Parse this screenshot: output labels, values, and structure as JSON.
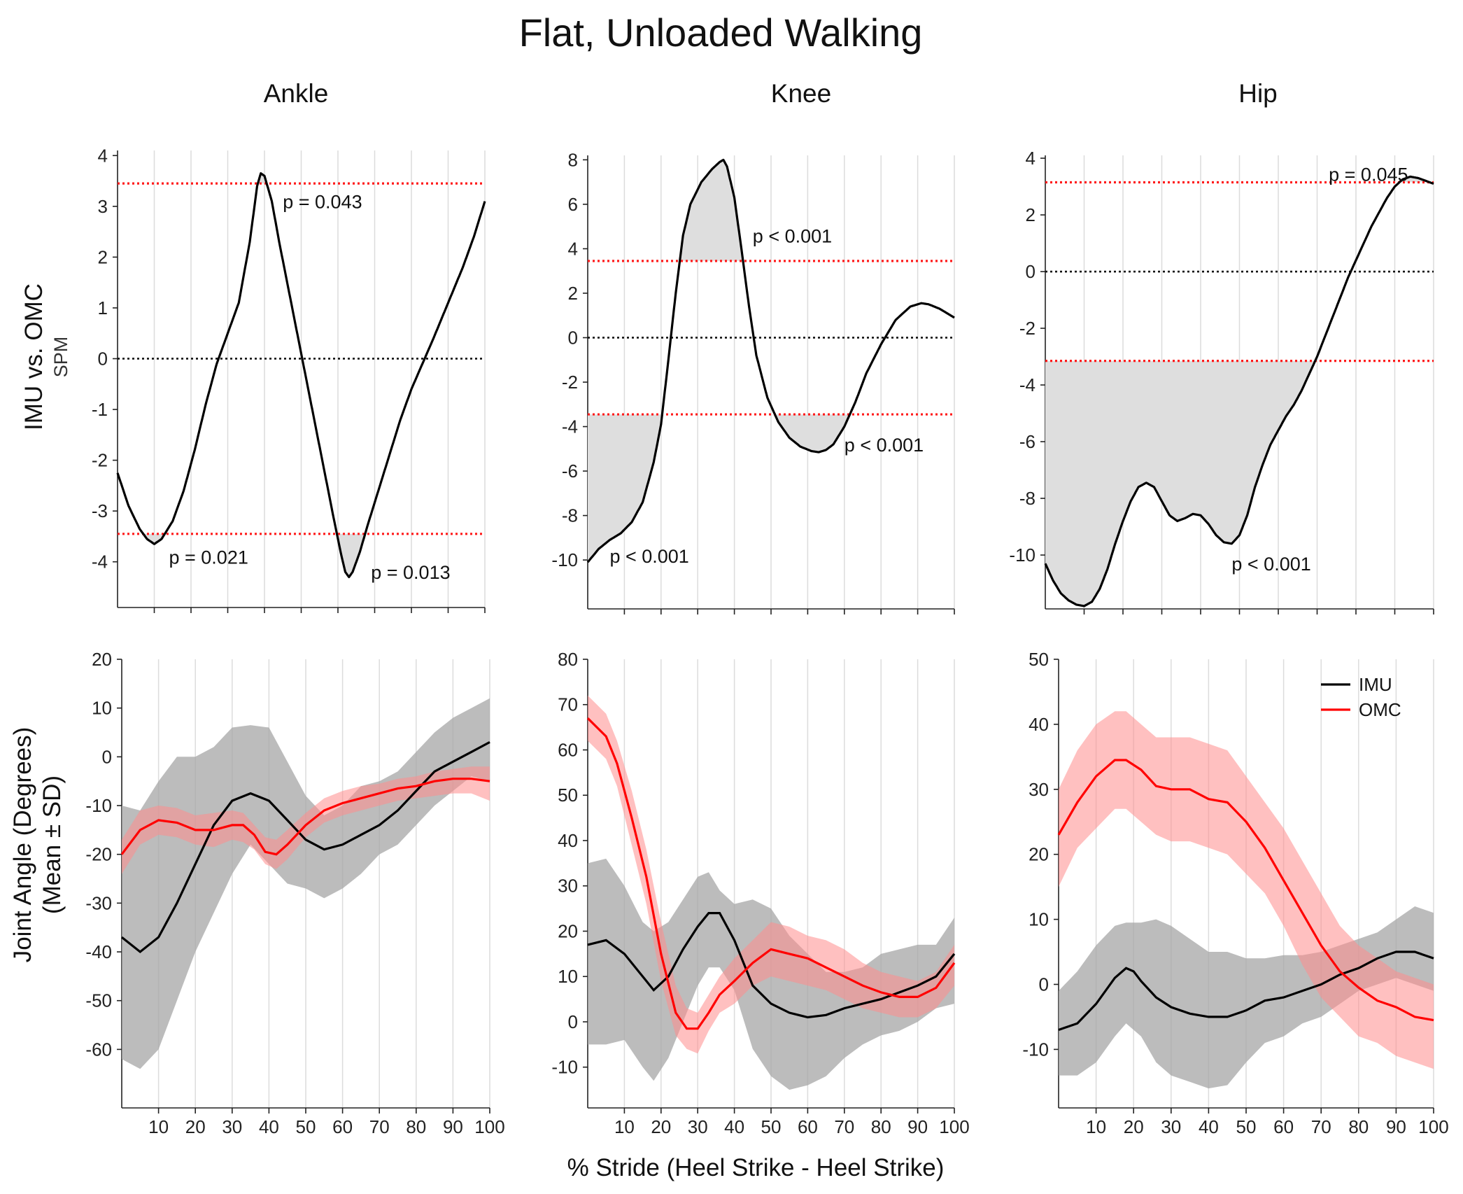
{
  "figure": {
    "title": "Flat, Unloaded Walking",
    "spm_ylabel_main": "IMU vs. OMC",
    "spm_ylabel_sub": "SPM",
    "angle_ylabel_line1": "Joint Angle (Degrees)",
    "angle_ylabel_line2": "(Mean ± SD)",
    "xlabel": "% Stride (Heel Strike - Heel Strike)",
    "colors": {
      "imu": "#000000",
      "omc": "#ff0000",
      "imu_band": "#a6a6a6",
      "omc_band": "#ff8c8c",
      "threshold": "#ff1a1a",
      "significance_fill": "#dedede"
    }
  },
  "legend": {
    "items": [
      {
        "label": "IMU",
        "color": "#000000"
      },
      {
        "label": "OMC",
        "color": "#ff0000"
      }
    ]
  },
  "chart_data": [
    {
      "panel": "ankle-spm",
      "column_title": "Ankle",
      "type": "line",
      "xlim": [
        0,
        100
      ],
      "ylim": [
        -4.9,
        4.1
      ],
      "yticks": [
        4,
        3,
        2,
        1,
        0,
        -1,
        -2,
        -3,
        -4
      ],
      "ytick_labels": [
        "4",
        "3",
        "2",
        "1",
        "0",
        "-1",
        "-2",
        "-3",
        "-4"
      ],
      "threshold": 3.45,
      "x": [
        0,
        3,
        6,
        8,
        10,
        12,
        15,
        18,
        21,
        24,
        27,
        30,
        33,
        36,
        38,
        39,
        40,
        42,
        44,
        47,
        50,
        53,
        56,
        59,
        61,
        62,
        63,
        64,
        66,
        68,
        71,
        74,
        77,
        80,
        83,
        86,
        90,
        94,
        97,
        100
      ],
      "y": [
        -2.25,
        -2.9,
        -3.35,
        -3.55,
        -3.65,
        -3.55,
        -3.2,
        -2.6,
        -1.8,
        -0.9,
        -0.1,
        0.5,
        1.1,
        2.3,
        3.4,
        3.65,
        3.6,
        3.1,
        2.3,
        1.2,
        0.1,
        -1.0,
        -2.1,
        -3.2,
        -3.9,
        -4.2,
        -4.3,
        -4.2,
        -3.8,
        -3.3,
        -2.6,
        -1.9,
        -1.2,
        -0.6,
        -0.1,
        0.4,
        1.1,
        1.8,
        2.4,
        3.1
      ],
      "annotations": [
        {
          "text": "p = 0.043",
          "x": 45,
          "y": 3.1
        },
        {
          "text": "p = 0.021",
          "x": 14,
          "y": -3.9
        },
        {
          "text": "p = 0.013",
          "x": 69,
          "y": -4.2
        }
      ]
    },
    {
      "panel": "knee-spm",
      "column_title": "Knee",
      "type": "line",
      "xlim": [
        0,
        100
      ],
      "ylim": [
        -12.2,
        8.2
      ],
      "yticks": [
        8,
        6,
        4,
        2,
        0,
        -2,
        -4,
        -6,
        -8,
        -10
      ],
      "ytick_labels": [
        "8",
        "6",
        "4",
        "2",
        "0",
        "-2",
        "-4",
        "-6",
        "-8",
        "-10"
      ],
      "threshold": 3.45,
      "x": [
        0,
        3,
        6,
        9,
        12,
        15,
        18,
        20,
        22,
        24,
        26,
        28,
        31,
        34,
        36,
        37,
        38,
        40,
        42,
        44,
        46,
        49,
        52,
        55,
        58,
        61,
        63,
        65,
        67,
        70,
        73,
        76,
        80,
        84,
        88,
        91,
        93,
        96,
        100
      ],
      "y": [
        -10.1,
        -9.5,
        -9.1,
        -8.8,
        -8.3,
        -7.4,
        -5.6,
        -3.9,
        -1.0,
        2.0,
        4.6,
        6.0,
        7.0,
        7.6,
        7.9,
        8.0,
        7.7,
        6.3,
        3.9,
        1.4,
        -0.8,
        -2.7,
        -3.8,
        -4.5,
        -4.9,
        -5.1,
        -5.15,
        -5.05,
        -4.8,
        -4.0,
        -2.9,
        -1.6,
        -0.3,
        0.8,
        1.4,
        1.55,
        1.5,
        1.3,
        0.9
      ],
      "annotations": [
        {
          "text": "p < 0.001",
          "x": 45,
          "y": 4.6
        },
        {
          "text": "p < 0.001",
          "x": 70,
          "y": -4.8
        },
        {
          "text": "p < 0.001",
          "x": 6,
          "y": -9.8
        }
      ]
    },
    {
      "panel": "hip-spm",
      "column_title": "Hip",
      "type": "line",
      "xlim": [
        0,
        100
      ],
      "ylim": [
        -11.9,
        4.1
      ],
      "yticks": [
        4,
        2,
        0,
        -2,
        -4,
        -6,
        -8,
        -10
      ],
      "ytick_labels": [
        "4",
        "2",
        "0",
        "-2",
        "-4",
        "-6",
        "-8",
        "-10"
      ],
      "threshold": 3.15,
      "x": [
        0,
        2,
        4,
        6,
        8,
        10,
        12,
        14,
        16,
        18,
        20,
        22,
        24,
        26,
        28,
        30,
        32,
        34,
        36,
        38,
        40,
        42,
        44,
        46,
        48,
        50,
        52,
        54,
        56,
        58,
        60,
        62,
        64,
        66,
        68,
        70,
        72,
        74,
        76,
        78,
        80,
        82,
        84,
        86,
        88,
        90,
        92,
        94,
        96,
        98,
        100
      ],
      "y": [
        -10.3,
        -10.9,
        -11.35,
        -11.6,
        -11.75,
        -11.8,
        -11.65,
        -11.2,
        -10.5,
        -9.6,
        -8.8,
        -8.1,
        -7.6,
        -7.45,
        -7.6,
        -8.1,
        -8.6,
        -8.8,
        -8.7,
        -8.55,
        -8.6,
        -8.9,
        -9.3,
        -9.55,
        -9.6,
        -9.3,
        -8.6,
        -7.6,
        -6.8,
        -6.1,
        -5.6,
        -5.1,
        -4.7,
        -4.2,
        -3.6,
        -3.0,
        -2.3,
        -1.6,
        -0.9,
        -0.2,
        0.4,
        1.0,
        1.6,
        2.1,
        2.6,
        3.0,
        3.25,
        3.35,
        3.3,
        3.2,
        3.1
      ],
      "annotations": [
        {
          "text": "p = 0.045",
          "x": 73,
          "y": 3.45
        },
        {
          "text": "p < 0.001",
          "x": 48,
          "y": -10.3
        }
      ]
    },
    {
      "panel": "ankle-angle",
      "type": "line",
      "xlim": [
        0,
        100
      ],
      "ylim": [
        -72,
        20
      ],
      "yticks": [
        20,
        10,
        0,
        -10,
        -20,
        -30,
        -40,
        -50,
        -60
      ],
      "ytick_labels": [
        "20",
        "10",
        "0",
        "-10",
        "-20",
        "-30",
        "-40",
        "-50",
        "-60"
      ],
      "xticks": [
        10,
        20,
        30,
        40,
        50,
        60,
        70,
        80,
        90,
        100
      ],
      "xtick_labels": [
        "10",
        "20",
        "30",
        "40",
        "50",
        "60",
        "70",
        "80",
        "90",
        "100"
      ],
      "series": [
        {
          "name": "IMU",
          "x": [
            0,
            5,
            10,
            15,
            20,
            25,
            30,
            35,
            40,
            45,
            50,
            55,
            60,
            65,
            70,
            75,
            80,
            85,
            90,
            95,
            100
          ],
          "mean": [
            -37,
            -40,
            -37,
            -30,
            -22,
            -14,
            -9,
            -7.5,
            -9,
            -13,
            -17,
            -19,
            -18,
            -16,
            -14,
            -11,
            -7,
            -3,
            -1,
            1,
            3
          ],
          "upper": [
            -10,
            -11,
            -5,
            0,
            0,
            2,
            6,
            6.5,
            6,
            -1,
            -8,
            -12,
            -10,
            -6,
            -5,
            -3,
            1,
            5,
            8,
            10,
            12
          ],
          "lower": [
            -62,
            -64,
            -60,
            -50,
            -40,
            -32,
            -24,
            -18,
            -22,
            -26,
            -27,
            -29,
            -27,
            -24,
            -20,
            -18,
            -14,
            -10,
            -7,
            -4,
            -5
          ]
        },
        {
          "name": "OMC",
          "x": [
            0,
            5,
            10,
            15,
            20,
            25,
            30,
            33,
            36,
            39,
            42,
            45,
            50,
            55,
            60,
            65,
            70,
            75,
            80,
            85,
            90,
            95,
            100
          ],
          "mean": [
            -20,
            -15,
            -13,
            -13.5,
            -15,
            -15,
            -14,
            -14,
            -16,
            -19.5,
            -20,
            -18,
            -14,
            -11,
            -9.5,
            -8.5,
            -7.5,
            -6.5,
            -6,
            -5,
            -4.5,
            -4.5,
            -5
          ],
          "upper": [
            -17,
            -11,
            -10,
            -10.5,
            -12,
            -11.5,
            -11,
            -11.5,
            -14,
            -16.5,
            -17,
            -15,
            -11.5,
            -8.5,
            -7,
            -6,
            -5.5,
            -4.5,
            -4,
            -3,
            -2.5,
            -2,
            -2
          ],
          "lower": [
            -24,
            -18,
            -16,
            -16.5,
            -18,
            -18.5,
            -17,
            -17.5,
            -19,
            -22,
            -23,
            -21,
            -16.5,
            -13.5,
            -12,
            -11,
            -10,
            -9,
            -8.5,
            -8,
            -7.5,
            -7.5,
            -9
          ]
        }
      ]
    },
    {
      "panel": "knee-angle",
      "type": "line",
      "xlim": [
        0,
        100
      ],
      "ylim": [
        -19,
        80
      ],
      "yticks": [
        80,
        70,
        60,
        50,
        40,
        30,
        20,
        10,
        0,
        -10
      ],
      "ytick_labels": [
        "80",
        "70",
        "60",
        "50",
        "40",
        "30",
        "20",
        "10",
        "0",
        "-10"
      ],
      "xticks": [
        10,
        20,
        30,
        40,
        50,
        60,
        70,
        80,
        90,
        100
      ],
      "xtick_labels": [
        "10",
        "20",
        "30",
        "40",
        "50",
        "60",
        "70",
        "80",
        "90",
        "100"
      ],
      "series": [
        {
          "name": "IMU",
          "x": [
            0,
            5,
            10,
            15,
            18,
            22,
            26,
            30,
            33,
            36,
            40,
            45,
            50,
            55,
            60,
            65,
            70,
            75,
            80,
            85,
            90,
            95,
            100
          ],
          "mean": [
            17,
            18,
            15,
            10,
            7,
            10,
            16,
            21,
            24,
            24,
            18,
            8,
            4,
            2,
            1,
            1.5,
            3,
            4,
            5,
            6.5,
            8,
            10,
            15
          ],
          "upper": [
            35,
            36,
            30,
            22,
            20,
            22,
            27,
            32,
            33,
            29,
            26,
            27,
            25,
            19,
            15,
            11,
            11,
            12,
            15,
            16,
            17,
            17,
            23
          ],
          "lower": [
            -5,
            -5,
            -4,
            -10,
            -13,
            -8,
            0,
            8,
            12,
            12,
            7,
            -6,
            -12,
            -15,
            -14,
            -12,
            -8,
            -5,
            -3,
            -2,
            0,
            3,
            4
          ]
        },
        {
          "name": "OMC",
          "x": [
            0,
            5,
            8,
            12,
            16,
            20,
            24,
            27,
            30,
            33,
            36,
            40,
            45,
            50,
            55,
            60,
            65,
            70,
            75,
            80,
            85,
            90,
            95,
            100
          ],
          "mean": [
            67,
            63,
            57,
            45,
            32,
            15,
            2,
            -1.5,
            -1.5,
            2,
            6,
            9,
            13,
            16,
            15,
            14,
            12,
            10,
            8,
            6.5,
            5.5,
            5.5,
            7.5,
            13
          ],
          "upper": [
            72,
            68,
            62,
            51,
            38,
            22,
            8,
            3,
            2,
            6,
            10,
            14,
            18,
            22,
            21,
            19,
            18,
            16,
            13,
            11,
            10,
            9,
            11,
            17
          ],
          "lower": [
            62,
            58,
            52,
            39,
            26,
            9,
            -3,
            -6,
            -7,
            -2,
            2,
            4,
            8,
            10,
            9,
            8,
            7,
            5,
            3,
            2,
            1,
            1,
            3,
            8
          ]
        }
      ]
    },
    {
      "panel": "hip-angle",
      "type": "line",
      "xlim": [
        0,
        100
      ],
      "ylim": [
        -19,
        50
      ],
      "yticks": [
        50,
        40,
        30,
        20,
        10,
        0,
        -10
      ],
      "ytick_labels": [
        "50",
        "40",
        "30",
        "20",
        "10",
        "0",
        "-10"
      ],
      "xticks": [
        10,
        20,
        30,
        40,
        50,
        60,
        70,
        80,
        90,
        100
      ],
      "xtick_labels": [
        "10",
        "20",
        "30",
        "40",
        "50",
        "60",
        "70",
        "80",
        "90",
        "100"
      ],
      "series": [
        {
          "name": "IMU",
          "x": [
            0,
            5,
            10,
            15,
            18,
            20,
            22,
            26,
            30,
            35,
            40,
            45,
            50,
            55,
            60,
            65,
            70,
            75,
            80,
            85,
            90,
            95,
            100
          ],
          "mean": [
            -7,
            -6,
            -3,
            1,
            2.5,
            2,
            0.5,
            -2,
            -3.5,
            -4.5,
            -5,
            -5,
            -4,
            -2.5,
            -2,
            -1,
            0,
            1.5,
            2.5,
            4,
            5,
            5,
            4
          ],
          "upper": [
            -1,
            2,
            6,
            9,
            9.5,
            9.5,
            9.5,
            10,
            9,
            7,
            5,
            5,
            4,
            4,
            4.5,
            4.5,
            5,
            6,
            7,
            8,
            10,
            12,
            11
          ],
          "lower": [
            -14,
            -14,
            -12,
            -8,
            -6,
            -7,
            -8,
            -12,
            -14,
            -15,
            -16,
            -15.5,
            -12,
            -9,
            -8,
            -6,
            -5,
            -3,
            -1,
            0,
            1,
            0,
            -1
          ]
        },
        {
          "name": "OMC",
          "x": [
            0,
            5,
            10,
            15,
            18,
            22,
            26,
            30,
            35,
            40,
            45,
            50,
            55,
            60,
            65,
            70,
            75,
            80,
            85,
            90,
            95,
            100
          ],
          "mean": [
            23,
            28,
            32,
            34.5,
            34.5,
            33,
            30.5,
            30,
            30,
            28.5,
            28,
            25,
            21,
            16,
            11,
            6,
            2,
            -0.5,
            -2.5,
            -3.5,
            -5,
            -5.5
          ],
          "upper": [
            30,
            36,
            40,
            42,
            42,
            40,
            38,
            38,
            38,
            37,
            36,
            32,
            28,
            24,
            19,
            14,
            9,
            6,
            4,
            2,
            1,
            0
          ],
          "lower": [
            15,
            21,
            24,
            27,
            27,
            25,
            23,
            22,
            22,
            21,
            20,
            17,
            14,
            9,
            3,
            -2,
            -5,
            -8,
            -9,
            -11,
            -12,
            -13
          ]
        }
      ]
    }
  ]
}
